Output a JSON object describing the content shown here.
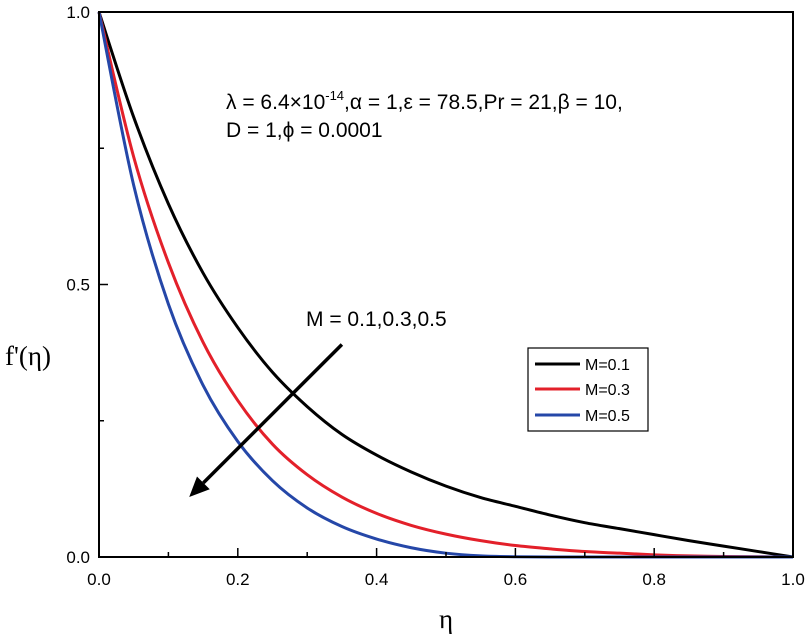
{
  "chart_data": {
    "type": "line",
    "title": "",
    "xlabel": "η",
    "ylabel": "f'(η)",
    "xlim": [
      0.0,
      1.0
    ],
    "ylim": [
      0.0,
      1.0
    ],
    "x_ticks": [
      "0.0",
      "0.2",
      "0.4",
      "0.6",
      "0.8",
      "1.0"
    ],
    "y_ticks": [
      "0.0",
      "0.5",
      "1.0"
    ],
    "grid": false,
    "legend_position": "center-right",
    "x": [
      0.0,
      0.05,
      0.1,
      0.15,
      0.2,
      0.25,
      0.3,
      0.35,
      0.4,
      0.45,
      0.5,
      0.55,
      0.6,
      0.65,
      0.7,
      0.75,
      0.8,
      0.85,
      0.9,
      0.95,
      1.0
    ],
    "series": [
      {
        "name": "M=0.1",
        "color": "#000000",
        "values": [
          1.0,
          0.807,
          0.648,
          0.521,
          0.421,
          0.339,
          0.276,
          0.225,
          0.187,
          0.156,
          0.13,
          0.109,
          0.093,
          0.077,
          0.063,
          0.052,
          0.041,
          0.03,
          0.02,
          0.01,
          0.0
        ]
      },
      {
        "name": "M=0.3",
        "color": "#e3202a",
        "values": [
          1.0,
          0.734,
          0.54,
          0.394,
          0.287,
          0.207,
          0.151,
          0.11,
          0.08,
          0.058,
          0.042,
          0.03,
          0.021,
          0.015,
          0.01,
          0.007,
          0.004,
          0.002,
          0.001,
          0.0005,
          0.0
        ]
      },
      {
        "name": "M=0.5",
        "color": "#2547a8",
        "values": [
          1.0,
          0.682,
          0.464,
          0.315,
          0.212,
          0.14,
          0.09,
          0.056,
          0.033,
          0.017,
          0.007,
          0.002,
          0.0005,
          0.0,
          0.0,
          0.0,
          0.0,
          0.0,
          0.0,
          0.0,
          0.0
        ]
      }
    ],
    "annotation": {
      "params_line1": "λ = 6.4×10",
      "params_exponent": "-14",
      "params_line1_rest": ",α = 1,ε = 78.5,Pr = 21,β = 10,",
      "params_line2": "D = 1,ϕ = 0.0001",
      "arrow_label": "M = 0.1,0.3,0.5",
      "arrow_from": [
        0.35,
        0.39
      ],
      "arrow_to": [
        0.13,
        0.11
      ]
    }
  }
}
